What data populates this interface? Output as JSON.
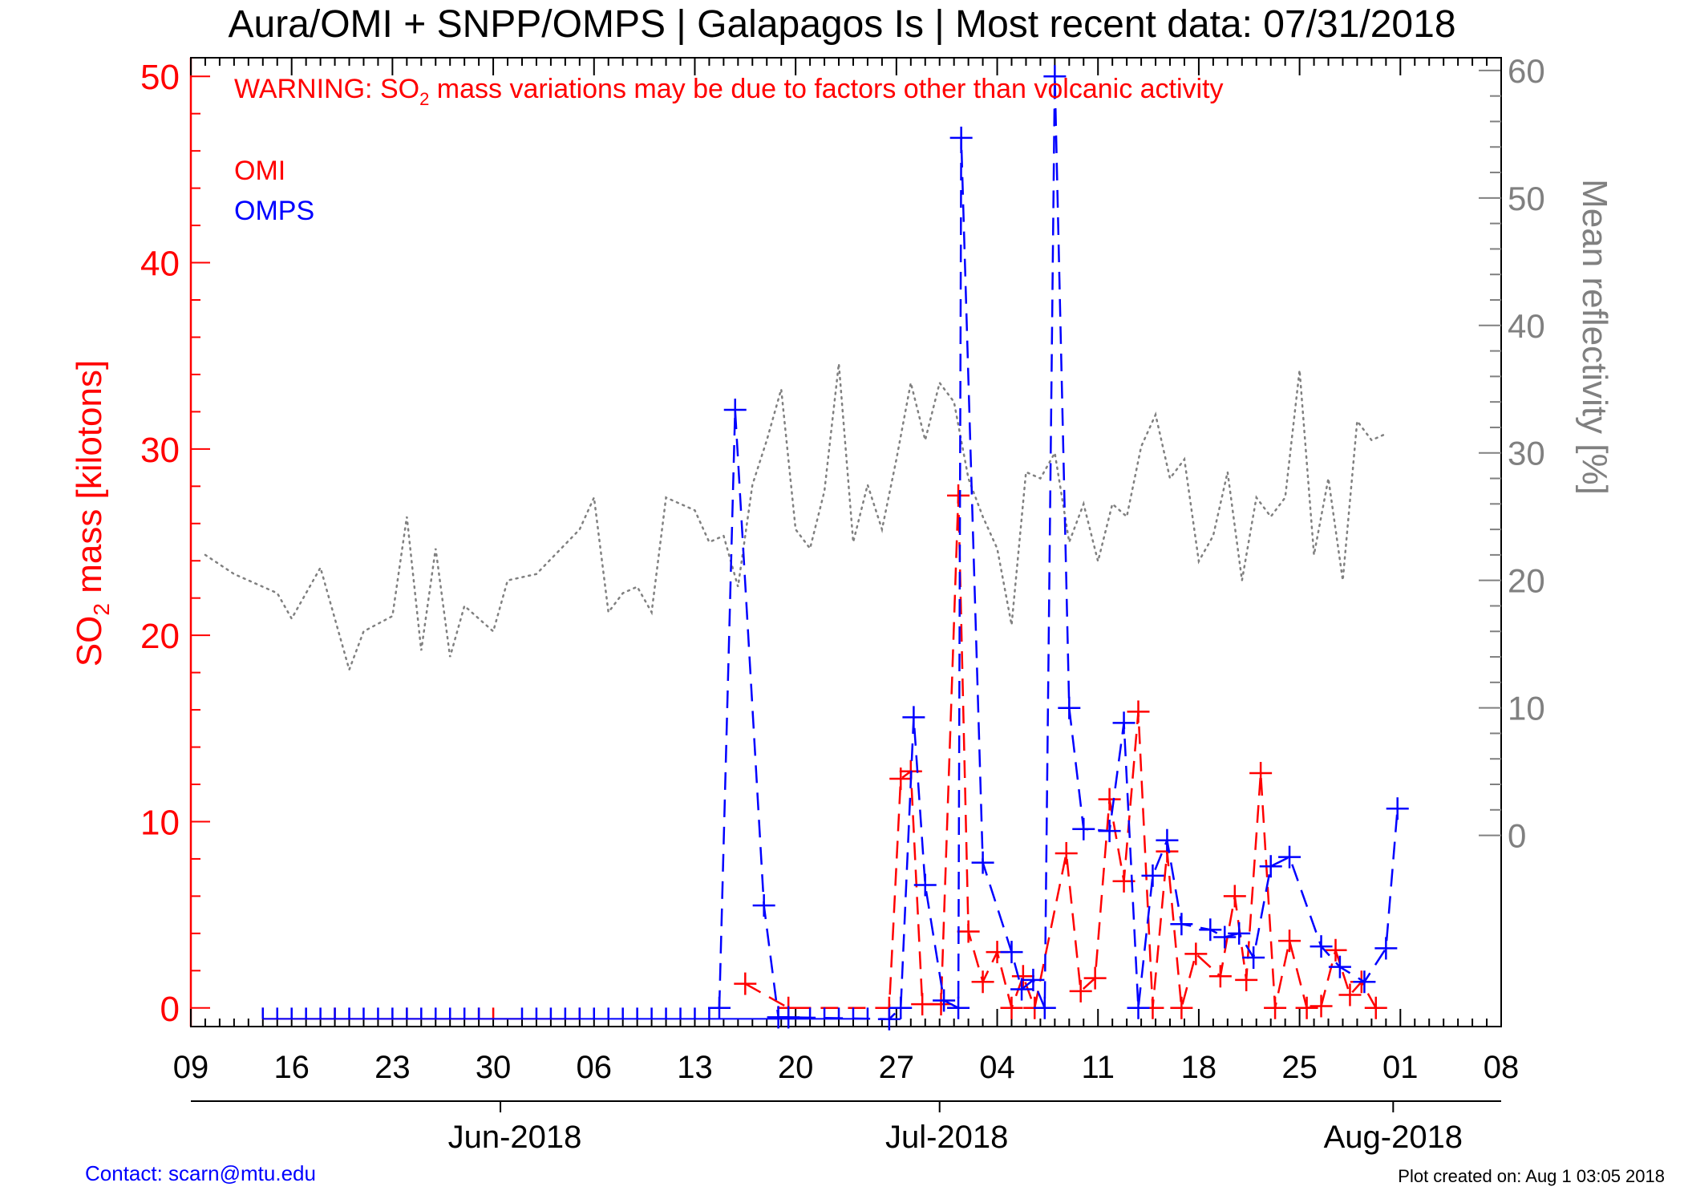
{
  "title": "Aura/OMI + SNPP/OMPS | Galapagos Is | Most recent data: 07/31/2018",
  "warning": {
    "prefix": "WARNING: SO",
    "sub": "2",
    "rest": " mass variations may be due to factors other than volcanic activity"
  },
  "legend": {
    "omi": "OMI",
    "omps": "OMPS"
  },
  "ylabel_left": {
    "prefix": "SO",
    "sub": "2",
    "rest": " mass [kilotons]"
  },
  "ylabel_right": "Mean reflectivity [%]",
  "contact": "Contact: scarn@mtu.edu",
  "created": "Plot created on: Aug  1 03:05 2018",
  "colors": {
    "omi": "#ff0000",
    "omps": "#0000ff",
    "reflectivity": "#808080",
    "axis": "#000000"
  },
  "chart_data": {
    "type": "line",
    "x_unit": "days since 2018-05-09",
    "xlim": [
      0,
      91
    ],
    "ylim_left": [
      -1,
      51
    ],
    "ylim_right": [
      -15,
      61
    ],
    "x_ticks": [
      {
        "day": 0,
        "label": "09"
      },
      {
        "day": 7,
        "label": "16"
      },
      {
        "day": 14,
        "label": "23"
      },
      {
        "day": 21,
        "label": "30"
      },
      {
        "day": 28,
        "label": "06"
      },
      {
        "day": 35,
        "label": "13"
      },
      {
        "day": 42,
        "label": "20"
      },
      {
        "day": 49,
        "label": "27"
      },
      {
        "day": 56,
        "label": "04"
      },
      {
        "day": 63,
        "label": "11"
      },
      {
        "day": 70,
        "label": "18"
      },
      {
        "day": 77,
        "label": "25"
      },
      {
        "day": 84,
        "label": "01"
      },
      {
        "day": 91,
        "label": "08"
      }
    ],
    "month_ticks": [
      {
        "day": 22.5,
        "label": "Jun-2018"
      },
      {
        "day": 52.5,
        "label": "Jul-2018"
      },
      {
        "day": 83.5,
        "label": "Aug-2018"
      }
    ],
    "y_left_ticks": [
      0,
      10,
      20,
      30,
      40,
      50
    ],
    "y_right_ticks": [
      0,
      10,
      20,
      30,
      40,
      50,
      60
    ],
    "series": [
      {
        "name": "OMI",
        "axis": "left",
        "marker": "+",
        "points": [
          [
            38.5,
            1.3
          ],
          [
            41.5,
            0
          ],
          [
            48.5,
            0
          ],
          [
            49.3,
            12.3
          ],
          [
            50.0,
            12.7
          ],
          [
            50.8,
            0.2
          ],
          [
            52.1,
            0.2
          ],
          [
            53.3,
            27.5
          ],
          [
            54.0,
            4.1
          ],
          [
            55.0,
            1.4
          ],
          [
            56.0,
            3.0
          ],
          [
            57.0,
            0
          ],
          [
            57.8,
            1.7
          ],
          [
            58.6,
            0
          ],
          [
            60.8,
            8.3
          ],
          [
            61.8,
            0.9
          ],
          [
            62.8,
            1.6
          ],
          [
            63.8,
            11.2
          ],
          [
            64.8,
            6.8
          ],
          [
            65.8,
            15.9
          ],
          [
            66.8,
            0
          ],
          [
            67.8,
            8.4
          ],
          [
            68.8,
            0
          ],
          [
            69.8,
            2.9
          ],
          [
            71.5,
            1.7
          ],
          [
            72.5,
            6.0
          ],
          [
            73.3,
            1.5
          ],
          [
            74.3,
            12.6
          ],
          [
            75.3,
            0
          ],
          [
            76.3,
            3.6
          ],
          [
            77.5,
            0
          ],
          [
            78.5,
            0.1
          ],
          [
            79.5,
            3.1
          ],
          [
            80.5,
            0.7
          ],
          [
            81.3,
            1.4
          ],
          [
            82.3,
            0
          ]
        ]
      },
      {
        "name": "OMPS",
        "axis": "left",
        "marker": "+",
        "points": [
          [
            36.7,
            0
          ],
          [
            37.8,
            32.1
          ],
          [
            39.8,
            5.5
          ],
          [
            40.8,
            -0.5
          ],
          [
            41.5,
            -0.5
          ],
          [
            48.5,
            -0.6
          ],
          [
            49.3,
            0
          ],
          [
            50.2,
            15.6
          ],
          [
            51.0,
            6.6
          ],
          [
            52.3,
            0.4
          ],
          [
            53.3,
            0
          ],
          [
            53.5,
            46.7
          ],
          [
            55.0,
            7.8
          ],
          [
            57.0,
            3.0
          ],
          [
            57.7,
            1.0
          ],
          [
            58.5,
            1.5
          ],
          [
            59.3,
            0
          ],
          [
            60.0,
            50.0
          ],
          [
            61.0,
            16.1
          ],
          [
            62.0,
            9.6
          ],
          [
            63.8,
            9.5
          ],
          [
            64.8,
            15.3
          ],
          [
            65.8,
            0
          ],
          [
            66.8,
            7.1
          ],
          [
            67.8,
            9.0
          ],
          [
            68.8,
            4.5
          ],
          [
            70.8,
            4.2
          ],
          [
            71.8,
            3.8
          ],
          [
            72.8,
            4.0
          ],
          [
            73.8,
            2.7
          ],
          [
            75.0,
            7.6
          ],
          [
            76.3,
            8.1
          ],
          [
            78.5,
            3.3
          ],
          [
            79.8,
            2.2
          ],
          [
            81.5,
            1.4
          ],
          [
            83.0,
            3.2
          ],
          [
            83.8,
            10.7
          ]
        ]
      },
      {
        "name": "Mean reflectivity",
        "axis": "right",
        "marker": "none",
        "points": [
          [
            1,
            22
          ],
          [
            3,
            20.5
          ],
          [
            6,
            19
          ],
          [
            7,
            17
          ],
          [
            9,
            21
          ],
          [
            11,
            13
          ],
          [
            12,
            16
          ],
          [
            14,
            17.2
          ],
          [
            15,
            25
          ],
          [
            16,
            14.5
          ],
          [
            17,
            22.5
          ],
          [
            18,
            14
          ],
          [
            19,
            18
          ],
          [
            21,
            16
          ],
          [
            22,
            20
          ],
          [
            24,
            20.5
          ],
          [
            27,
            24
          ],
          [
            28,
            26.5
          ],
          [
            29,
            17.5
          ],
          [
            30,
            19
          ],
          [
            31,
            19.5
          ],
          [
            32,
            17.5
          ],
          [
            33,
            26.5
          ],
          [
            35,
            25.5
          ],
          [
            36,
            23
          ],
          [
            37,
            23.5
          ],
          [
            38,
            19.5
          ],
          [
            39,
            27.5
          ],
          [
            40,
            31
          ],
          [
            41,
            35
          ],
          [
            42,
            24
          ],
          [
            43,
            22.5
          ],
          [
            44,
            27
          ],
          [
            45,
            37
          ],
          [
            46,
            23
          ],
          [
            47,
            27.5
          ],
          [
            48,
            24
          ],
          [
            49,
            29.5
          ],
          [
            50,
            35.5
          ],
          [
            51,
            31
          ],
          [
            52,
            35.5
          ],
          [
            53,
            34
          ],
          [
            54,
            28
          ],
          [
            55,
            25
          ],
          [
            56,
            22.5
          ],
          [
            57,
            16.5
          ],
          [
            58,
            28.5
          ],
          [
            59,
            28
          ],
          [
            60,
            30
          ],
          [
            61,
            23
          ],
          [
            62,
            26
          ],
          [
            63,
            21.5
          ],
          [
            64,
            26
          ],
          [
            65,
            25
          ],
          [
            66,
            30.5
          ],
          [
            67,
            33
          ],
          [
            68,
            28
          ],
          [
            69,
            29.5
          ],
          [
            70,
            21.5
          ],
          [
            71,
            23.5
          ],
          [
            72,
            28.5
          ],
          [
            73,
            20
          ],
          [
            74,
            26.5
          ],
          [
            75,
            25
          ],
          [
            76,
            26.5
          ],
          [
            77,
            36.5
          ],
          [
            78,
            22
          ],
          [
            79,
            28
          ],
          [
            80,
            20
          ],
          [
            81,
            32.5
          ],
          [
            82,
            31
          ],
          [
            83,
            31.5
          ]
        ]
      }
    ],
    "zero_markers": {
      "OMI": [
        5,
        10,
        15,
        20,
        21,
        27
      ],
      "OMPS": [
        5,
        6,
        7,
        8,
        9,
        10,
        11,
        12,
        13,
        14,
        15,
        16,
        17,
        18,
        19,
        20,
        23,
        24,
        25,
        26,
        27,
        28,
        29,
        30,
        31,
        32,
        33,
        34,
        35,
        36,
        43,
        44,
        45,
        46,
        47
      ]
    }
  }
}
